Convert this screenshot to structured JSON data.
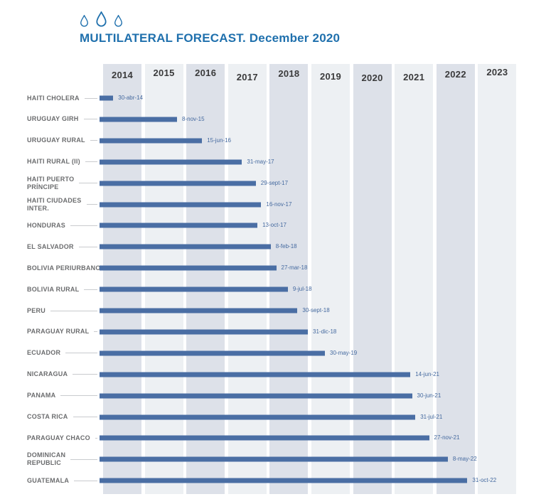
{
  "title": {
    "text": "MULTILATERAL FORECAST. December 2020"
  },
  "logo": {
    "icon": "water-drop-icon",
    "count": 3
  },
  "colors": {
    "title_blue": "#1f70ad",
    "drop_outline": "#1f70ad",
    "bar_blue": "#4a6ea4",
    "date_text_blue": "#44699f",
    "row_label_gray": "#6b6c6e",
    "year_label_gray": "#3a3a3b",
    "band_dark": "#dde1e9",
    "band_light": "#edf0f3",
    "leader_line": "#c9cbce",
    "background": "#ffffff"
  },
  "chart_data": {
    "type": "bar",
    "subtype": "horizontal-timeline-gantt",
    "title": "MULTILATERAL FORECAST. December 2020",
    "xlabel": "",
    "ylabel": "",
    "grid": "alternating vertical year bands",
    "legend": "none",
    "x_axis": {
      "tick_labels": [
        "2014",
        "2015",
        "2016",
        "2017",
        "2018",
        "2019",
        "2020",
        "2021",
        "2022",
        "2023"
      ],
      "range_years": [
        2014,
        2024
      ],
      "position": "top"
    },
    "bars_start_year": 2014,
    "rows": [
      {
        "label": "HAITI CHOLERA",
        "label_lines": [
          "HAITI CHOLERA"
        ],
        "date": "30-abr-14",
        "end_year": 2014.33
      },
      {
        "label": "URUGUAY GIRH",
        "label_lines": [
          "URUGUAY GIRH"
        ],
        "date": "8-nov-15",
        "end_year": 2015.86
      },
      {
        "label": "URUGUAY RURAL",
        "label_lines": [
          "URUGUAY RURAL"
        ],
        "date": "15-jun-16",
        "end_year": 2016.46
      },
      {
        "label": "HAITI RURAL (II)",
        "label_lines": [
          "HAITI RURAL (II)"
        ],
        "date": "31-may-17",
        "end_year": 2017.42
      },
      {
        "label": "HAITI PUERTO PRÍNCIPE",
        "label_lines": [
          "HAITI PUERTO",
          "PRÍNCIPE"
        ],
        "date": "29-sept-17",
        "end_year": 2017.75
      },
      {
        "label": "HAITI CIUDADES INTER.",
        "label_lines": [
          "HAITI CIUDADES",
          "INTER."
        ],
        "date": "16-nov-17",
        "end_year": 2017.88
      },
      {
        "label": "HONDURAS",
        "label_lines": [
          "HONDURAS"
        ],
        "date": "13-oct-17",
        "end_year": 2017.79
      },
      {
        "label": "EL SALVADOR",
        "label_lines": [
          "EL SALVADOR"
        ],
        "date": "8-feb-18",
        "end_year": 2018.11
      },
      {
        "label": "BOLIVIA PERIURBANO",
        "label_lines": [
          "BOLIVIA PERIURBANO"
        ],
        "date": "27-mar-18",
        "end_year": 2018.24
      },
      {
        "label": "BOLIVIA RURAL",
        "label_lines": [
          "BOLIVIA RURAL"
        ],
        "date": "9-jul-18",
        "end_year": 2018.52
      },
      {
        "label": "PERU",
        "label_lines": [
          "PERU"
        ],
        "date": "30-sept-18",
        "end_year": 2018.75
      },
      {
        "label": "PARAGUAY RURAL",
        "label_lines": [
          "PARAGUAY RURAL"
        ],
        "date": "31-dic-18",
        "end_year": 2019.0
      },
      {
        "label": "ECUADOR",
        "label_lines": [
          "ECUADOR"
        ],
        "date": "30-may-19",
        "end_year": 2019.41
      },
      {
        "label": "NICARAGUA",
        "label_lines": [
          "NICARAGUA"
        ],
        "date": "14-jun-21",
        "end_year": 2021.46
      },
      {
        "label": "PANAMA",
        "label_lines": [
          "PANAMA"
        ],
        "date": "30-jun-21",
        "end_year": 2021.5
      },
      {
        "label": "COSTA RICA",
        "label_lines": [
          "COSTA RICA"
        ],
        "date": "31-jul-21",
        "end_year": 2021.58
      },
      {
        "label": "PARAGUAY CHACO",
        "label_lines": [
          "PARAGUAY CHACO"
        ],
        "date": "27-nov-21",
        "end_year": 2021.91
      },
      {
        "label": "DOMINICAN REPUBLIC",
        "label_lines": [
          "DOMINICAN",
          "REPUBLIC"
        ],
        "date": "8-may-22",
        "end_year": 2022.36
      },
      {
        "label": "GUATEMALA",
        "label_lines": [
          "GUATEMALA"
        ],
        "date": "31-oct-22",
        "end_year": 2022.83
      }
    ]
  }
}
